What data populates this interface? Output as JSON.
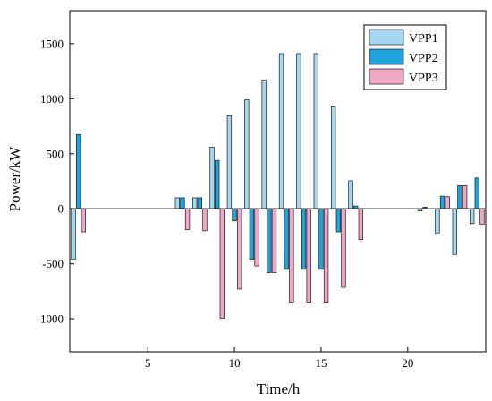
{
  "chart_data": {
    "type": "bar",
    "xlabel": "Time/h",
    "ylabel": "Power/kW",
    "xlim": [
      0.5,
      24.5
    ],
    "ylim": [
      -1300,
      1800
    ],
    "xticks": [
      5,
      10,
      15,
      20
    ],
    "yticks": [
      -1000,
      -500,
      0,
      500,
      1000,
      1500
    ],
    "legend_position": "top-right",
    "x": [
      1,
      2,
      3,
      4,
      5,
      6,
      7,
      8,
      9,
      10,
      11,
      12,
      13,
      14,
      15,
      16,
      17,
      18,
      19,
      20,
      21,
      22,
      23,
      24
    ],
    "series": [
      {
        "name": "VPP1",
        "color": "#a6d7f0",
        "values": [
          -460,
          0,
          0,
          0,
          0,
          0,
          100,
          100,
          560,
          845,
          990,
          1170,
          1410,
          1410,
          1410,
          935,
          255,
          0,
          0,
          0,
          -20,
          -220,
          -415,
          -135
        ]
      },
      {
        "name": "VPP2",
        "color": "#1fa3da",
        "values": [
          675,
          0,
          0,
          0,
          0,
          0,
          100,
          100,
          440,
          -110,
          -460,
          -580,
          -550,
          -550,
          -550,
          -210,
          25,
          0,
          0,
          0,
          15,
          115,
          210,
          280
        ]
      },
      {
        "name": "VPP3",
        "color": "#f0a6c6",
        "values": [
          -210,
          0,
          0,
          0,
          0,
          0,
          -190,
          -200,
          -995,
          -730,
          -520,
          -580,
          -850,
          -850,
          -850,
          -715,
          -280,
          0,
          0,
          0,
          0,
          110,
          210,
          -140
        ]
      }
    ]
  }
}
